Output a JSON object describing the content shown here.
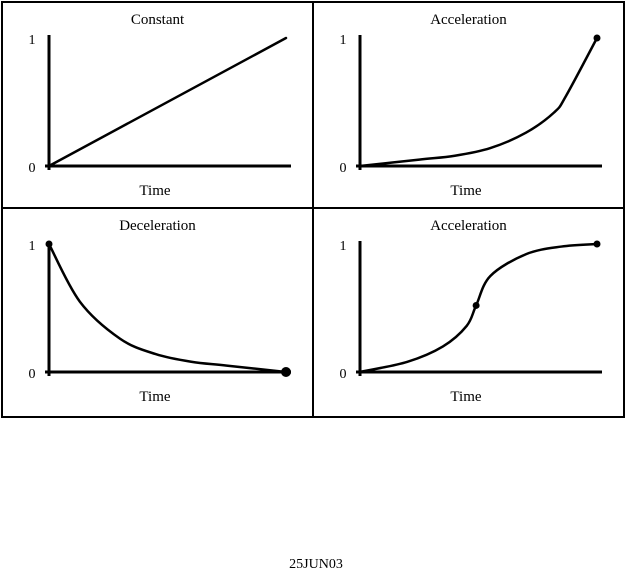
{
  "footer": {
    "code": "25JUN03"
  },
  "chart_data": [
    {
      "type": "line",
      "title": "Constant",
      "xlabel": "Time",
      "ylabel": "",
      "ylim": [
        0,
        1
      ],
      "xlim": [
        0,
        1
      ],
      "yticks": [
        "0",
        "1"
      ],
      "series": [
        {
          "x": [
            0,
            1
          ],
          "y": [
            0,
            1
          ]
        }
      ]
    },
    {
      "type": "line",
      "title": "Acceleration",
      "xlabel": "Time",
      "ylabel": "",
      "ylim": [
        0,
        1
      ],
      "xlim": [
        0,
        1
      ],
      "yticks": [
        "0",
        "1"
      ],
      "series": [
        {
          "x": [
            0,
            0.25,
            0.4,
            0.55,
            0.7,
            0.82,
            0.87,
            1
          ],
          "y": [
            0,
            0.05,
            0.08,
            0.14,
            0.26,
            0.42,
            0.55,
            1
          ]
        }
      ],
      "markers": [
        {
          "x": 1,
          "y": 1
        }
      ]
    },
    {
      "type": "line",
      "title": "Deceleration",
      "xlabel": "Time",
      "ylabel": "",
      "ylim": [
        0,
        1
      ],
      "xlim": [
        0,
        1
      ],
      "yticks": [
        "0",
        "1"
      ],
      "series": [
        {
          "x": [
            0,
            0.13,
            0.3,
            0.45,
            0.6,
            0.75,
            1
          ],
          "y": [
            1,
            0.55,
            0.26,
            0.14,
            0.08,
            0.05,
            0
          ]
        }
      ],
      "markers": [
        {
          "x": 0,
          "y": 1
        },
        {
          "x": 1,
          "y": 0,
          "size": "large"
        }
      ]
    },
    {
      "type": "line",
      "title": "Acceleration",
      "xlabel": "Time",
      "ylabel": "",
      "ylim": [
        0,
        1
      ],
      "xlim": [
        0,
        1
      ],
      "yticks": [
        "0",
        "1"
      ],
      "series": [
        {
          "x": [
            0,
            0.2,
            0.35,
            0.45,
            0.49,
            0.55,
            0.7,
            0.85,
            1
          ],
          "y": [
            0,
            0.08,
            0.2,
            0.36,
            0.52,
            0.75,
            0.92,
            0.98,
            1
          ]
        }
      ],
      "markers": [
        {
          "x": 0.49,
          "y": 0.52
        },
        {
          "x": 1,
          "y": 1
        }
      ]
    }
  ]
}
